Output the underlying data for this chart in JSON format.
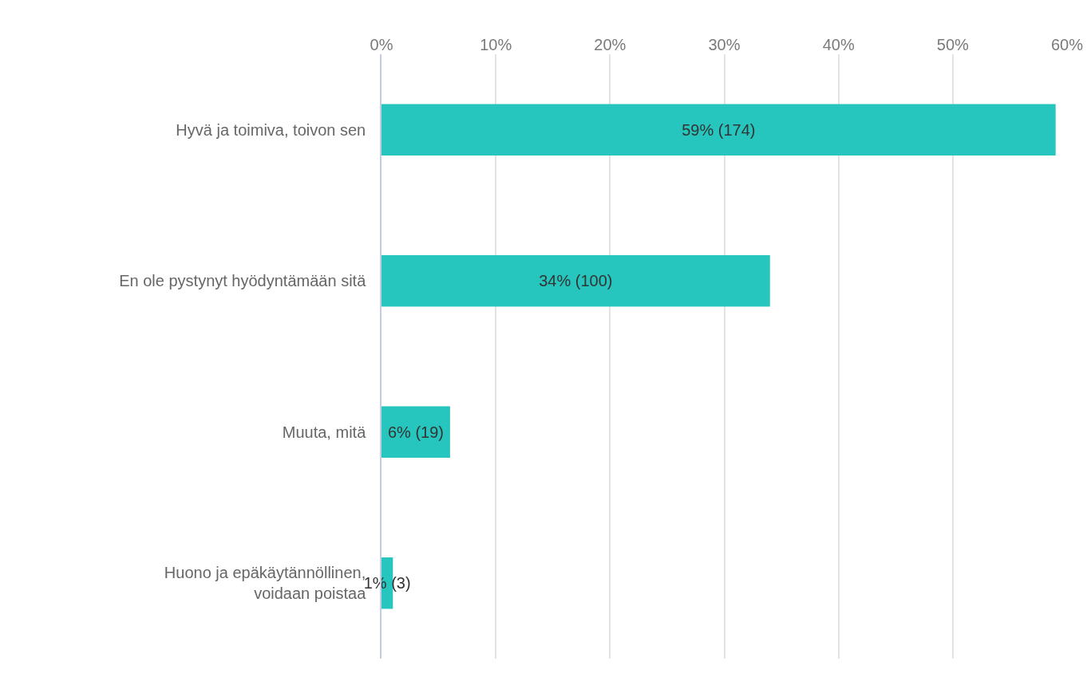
{
  "chart_data": {
    "type": "bar",
    "orientation": "horizontal",
    "categories": [
      "Hyvä ja toimiva, toivon sen",
      "En ole pystynyt hyödyntämään sitä",
      "Muuta, mitä",
      "Huono ja epäkäytännöllinen, voidaan poistaa"
    ],
    "values": [
      59,
      34,
      6,
      1
    ],
    "value_labels": [
      "59% (174)",
      "34% (100)",
      "6% (19)",
      "1% (3)"
    ],
    "color": "#26c6be",
    "xlim": [
      0,
      60
    ],
    "xticks": [
      {
        "value": 0,
        "label": "0%"
      },
      {
        "value": 10,
        "label": "10%"
      },
      {
        "value": 20,
        "label": "20%"
      },
      {
        "value": 30,
        "label": "30%"
      },
      {
        "value": 40,
        "label": "40%"
      },
      {
        "value": 50,
        "label": "50%"
      },
      {
        "value": 60,
        "label": "60%"
      }
    ],
    "grid": "x"
  }
}
